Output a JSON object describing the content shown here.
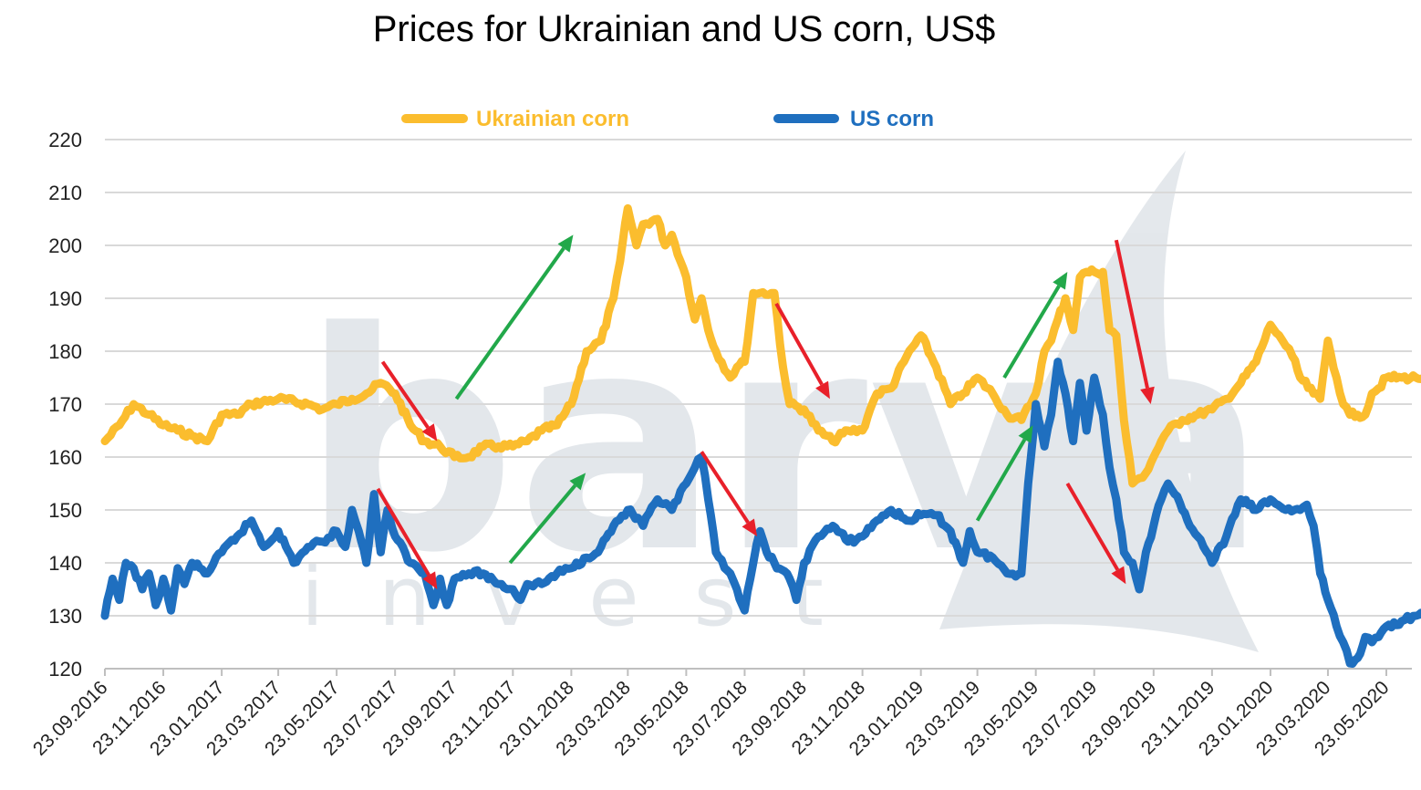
{
  "chart_data": {
    "type": "line",
    "title": "Prices for Ukrainian and US corn, US$",
    "xlabel": "",
    "ylabel": "",
    "ylim": [
      120,
      220
    ],
    "yticks": [
      120,
      130,
      140,
      150,
      160,
      170,
      180,
      190,
      200,
      210,
      220
    ],
    "x_tick_labels": [
      "23.09.2016",
      "23.11.2016",
      "23.01.2017",
      "23.03.2017",
      "23.05.2017",
      "23.07.2017",
      "23.09.2017",
      "23.11.2017",
      "23.01.2018",
      "23.03.2018",
      "23.05.2018",
      "23.07.2018",
      "23.09.2018",
      "23.11.2018",
      "23.01.2019",
      "23.03.2019",
      "23.05.2019",
      "23.07.2019",
      "23.09.2019",
      "23.11.2019",
      "23.01.2020",
      "23.03.2020",
      "23.05.2020"
    ],
    "x_range": [
      "23.09.2016",
      "01.07.2020"
    ],
    "grid": "horizontal",
    "legend_position": "top",
    "watermark": "barva invest",
    "series": [
      {
        "name": "Ukrainian corn",
        "color": "#fbbd2e",
        "points": [
          [
            "23.09.2016",
            163
          ],
          [
            "08.10.2016",
            166
          ],
          [
            "23.10.2016",
            170
          ],
          [
            "08.11.2016",
            168
          ],
          [
            "23.11.2016",
            166
          ],
          [
            "08.12.2016",
            165
          ],
          [
            "23.12.2016",
            164
          ],
          [
            "08.01.2017",
            163
          ],
          [
            "23.01.2017",
            168
          ],
          [
            "08.02.2017",
            168
          ],
          [
            "23.02.2017",
            170
          ],
          [
            "23.03.2017",
            171
          ],
          [
            "23.04.2017",
            170
          ],
          [
            "08.05.2017",
            169
          ],
          [
            "23.05.2017",
            170
          ],
          [
            "08.06.2017",
            171
          ],
          [
            "23.06.2017",
            172
          ],
          [
            "08.07.2017",
            174
          ],
          [
            "23.07.2017",
            172
          ],
          [
            "08.08.2017",
            166
          ],
          [
            "23.08.2017",
            163
          ],
          [
            "08.09.2017",
            162
          ],
          [
            "23.09.2017",
            160
          ],
          [
            "08.10.2017",
            160
          ],
          [
            "23.10.2017",
            162
          ],
          [
            "08.11.2017",
            162
          ],
          [
            "23.11.2017",
            162
          ],
          [
            "08.12.2017",
            163
          ],
          [
            "23.12.2017",
            165
          ],
          [
            "08.01.2018",
            166
          ],
          [
            "23.01.2018",
            170
          ],
          [
            "08.02.2018",
            180
          ],
          [
            "23.02.2018",
            182
          ],
          [
            "08.03.2018",
            190
          ],
          [
            "15.03.2018",
            197
          ],
          [
            "23.03.2018",
            207
          ],
          [
            "01.04.2018",
            200
          ],
          [
            "08.04.2018",
            204
          ],
          [
            "23.04.2018",
            205
          ],
          [
            "01.05.2018",
            200
          ],
          [
            "08.05.2018",
            202
          ],
          [
            "23.05.2018",
            194
          ],
          [
            "01.06.2018",
            186
          ],
          [
            "08.06.2018",
            190
          ],
          [
            "15.06.2018",
            184
          ],
          [
            "23.06.2018",
            180
          ],
          [
            "08.07.2018",
            175
          ],
          [
            "15.07.2018",
            177
          ],
          [
            "23.07.2018",
            178
          ],
          [
            "01.08.2018",
            191
          ],
          [
            "08.08.2018",
            191
          ],
          [
            "23.08.2018",
            191
          ],
          [
            "01.09.2018",
            177
          ],
          [
            "08.09.2018",
            170
          ],
          [
            "23.09.2018",
            169
          ],
          [
            "08.10.2018",
            165
          ],
          [
            "23.10.2018",
            163
          ],
          [
            "08.11.2018",
            165
          ],
          [
            "23.11.2018",
            165
          ],
          [
            "01.12.2018",
            169
          ],
          [
            "08.12.2018",
            172
          ],
          [
            "23.12.2018",
            173
          ],
          [
            "08.01.2019",
            179
          ],
          [
            "23.01.2019",
            183
          ],
          [
            "08.02.2019",
            177
          ],
          [
            "23.02.2019",
            170
          ],
          [
            "08.03.2019",
            172
          ],
          [
            "23.03.2019",
            175
          ],
          [
            "08.04.2019",
            172
          ],
          [
            "23.04.2019",
            168
          ],
          [
            "08.05.2019",
            167
          ],
          [
            "23.05.2019",
            172
          ],
          [
            "01.06.2019",
            180
          ],
          [
            "08.06.2019",
            182
          ],
          [
            "15.06.2019",
            186
          ],
          [
            "23.06.2019",
            190
          ],
          [
            "01.07.2019",
            184
          ],
          [
            "08.07.2019",
            194
          ],
          [
            "15.07.2019",
            195
          ],
          [
            "23.07.2019",
            195
          ],
          [
            "01.08.2019",
            195
          ],
          [
            "08.08.2019",
            184
          ],
          [
            "15.08.2019",
            183
          ],
          [
            "23.08.2019",
            167
          ],
          [
            "01.09.2019",
            155
          ],
          [
            "08.09.2019",
            156
          ],
          [
            "15.09.2019",
            157
          ],
          [
            "23.09.2019",
            160
          ],
          [
            "01.10.2019",
            163
          ],
          [
            "08.10.2019",
            165
          ],
          [
            "23.10.2019",
            167
          ],
          [
            "08.11.2019",
            168
          ],
          [
            "23.11.2019",
            169
          ],
          [
            "08.12.2019",
            171
          ],
          [
            "23.12.2019",
            174
          ],
          [
            "08.01.2020",
            178
          ],
          [
            "23.01.2020",
            185
          ],
          [
            "01.02.2020",
            183
          ],
          [
            "08.02.2020",
            181
          ],
          [
            "15.02.2020",
            179
          ],
          [
            "23.02.2020",
            175
          ],
          [
            "08.03.2020",
            172
          ],
          [
            "15.03.2020",
            171
          ],
          [
            "23.03.2020",
            182
          ],
          [
            "01.04.2020",
            175
          ],
          [
            "08.04.2020",
            170
          ],
          [
            "15.04.2020",
            168
          ],
          [
            "23.04.2020",
            168
          ],
          [
            "01.05.2020",
            168
          ],
          [
            "08.05.2020",
            172
          ],
          [
            "15.05.2020",
            173
          ],
          [
            "23.05.2020",
            175
          ],
          [
            "08.06.2020",
            175
          ],
          [
            "23.06.2020",
            175
          ],
          [
            "01.07.2020",
            175
          ]
        ]
      },
      {
        "name": "US corn",
        "color": "#1f6fbf",
        "points": [
          [
            "23.09.2016",
            130
          ],
          [
            "01.10.2016",
            137
          ],
          [
            "08.10.2016",
            133
          ],
          [
            "15.10.2016",
            140
          ],
          [
            "23.10.2016",
            139
          ],
          [
            "01.11.2016",
            135
          ],
          [
            "08.11.2016",
            138
          ],
          [
            "15.11.2016",
            132
          ],
          [
            "23.11.2016",
            137
          ],
          [
            "01.12.2016",
            131
          ],
          [
            "08.12.2016",
            139
          ],
          [
            "15.12.2016",
            136
          ],
          [
            "23.12.2016",
            140
          ],
          [
            "08.01.2017",
            138
          ],
          [
            "23.01.2017",
            142
          ],
          [
            "08.02.2017",
            145
          ],
          [
            "23.02.2017",
            148
          ],
          [
            "08.03.2017",
            143
          ],
          [
            "23.03.2017",
            146
          ],
          [
            "08.04.2017",
            140
          ],
          [
            "23.04.2017",
            143
          ],
          [
            "08.05.2017",
            144
          ],
          [
            "23.05.2017",
            146
          ],
          [
            "01.06.2017",
            143
          ],
          [
            "08.06.2017",
            150
          ],
          [
            "15.06.2017",
            146
          ],
          [
            "23.06.2017",
            140
          ],
          [
            "01.07.2017",
            153
          ],
          [
            "08.07.2017",
            142
          ],
          [
            "15.07.2017",
            150
          ],
          [
            "23.07.2017",
            145
          ],
          [
            "08.08.2017",
            140
          ],
          [
            "23.08.2017",
            138
          ],
          [
            "01.09.2017",
            132
          ],
          [
            "08.09.2017",
            137
          ],
          [
            "15.09.2017",
            132
          ],
          [
            "23.09.2017",
            137
          ],
          [
            "08.10.2017",
            138
          ],
          [
            "23.10.2017",
            138
          ],
          [
            "08.11.2017",
            136
          ],
          [
            "23.11.2017",
            135
          ],
          [
            "01.12.2017",
            133
          ],
          [
            "08.12.2017",
            136
          ],
          [
            "23.12.2017",
            136
          ],
          [
            "08.01.2018",
            138
          ],
          [
            "23.01.2018",
            139
          ],
          [
            "08.02.2018",
            141
          ],
          [
            "23.02.2018",
            143
          ],
          [
            "08.03.2018",
            147
          ],
          [
            "23.03.2018",
            150
          ],
          [
            "08.04.2018",
            147
          ],
          [
            "23.04.2018",
            152
          ],
          [
            "08.05.2018",
            150
          ],
          [
            "23.05.2018",
            155
          ],
          [
            "01.06.2018",
            158
          ],
          [
            "08.06.2018",
            160
          ],
          [
            "15.06.2018",
            152
          ],
          [
            "23.06.2018",
            142
          ],
          [
            "08.07.2018",
            138
          ],
          [
            "15.07.2018",
            135
          ],
          [
            "23.07.2018",
            131
          ],
          [
            "01.08.2018",
            140
          ],
          [
            "08.08.2018",
            146
          ],
          [
            "15.08.2018",
            142
          ],
          [
            "23.08.2018",
            140
          ],
          [
            "08.09.2018",
            137
          ],
          [
            "15.09.2018",
            133
          ],
          [
            "23.09.2018",
            140
          ],
          [
            "08.10.2018",
            145
          ],
          [
            "23.10.2018",
            147
          ],
          [
            "08.11.2018",
            144
          ],
          [
            "23.11.2018",
            145
          ],
          [
            "08.12.2018",
            148
          ],
          [
            "23.12.2018",
            150
          ],
          [
            "08.01.2019",
            148
          ],
          [
            "23.01.2019",
            149
          ],
          [
            "08.02.2019",
            149
          ],
          [
            "23.02.2019",
            146
          ],
          [
            "08.03.2019",
            140
          ],
          [
            "15.03.2019",
            146
          ],
          [
            "23.03.2019",
            142
          ],
          [
            "08.04.2019",
            141
          ],
          [
            "23.04.2019",
            138
          ],
          [
            "08.05.2019",
            138
          ],
          [
            "15.05.2019",
            155
          ],
          [
            "23.05.2019",
            170
          ],
          [
            "01.06.2019",
            162
          ],
          [
            "08.06.2019",
            168
          ],
          [
            "15.06.2019",
            178
          ],
          [
            "23.06.2019",
            172
          ],
          [
            "01.07.2019",
            163
          ],
          [
            "08.07.2019",
            174
          ],
          [
            "15.07.2019",
            165
          ],
          [
            "23.07.2019",
            175
          ],
          [
            "01.08.2019",
            168
          ],
          [
            "08.08.2019",
            158
          ],
          [
            "15.08.2019",
            152
          ],
          [
            "23.08.2019",
            142
          ],
          [
            "01.09.2019",
            140
          ],
          [
            "08.09.2019",
            135
          ],
          [
            "15.09.2019",
            142
          ],
          [
            "23.09.2019",
            147
          ],
          [
            "01.10.2019",
            152
          ],
          [
            "08.10.2019",
            155
          ],
          [
            "15.10.2019",
            153
          ],
          [
            "23.10.2019",
            150
          ],
          [
            "08.11.2019",
            145
          ],
          [
            "23.11.2019",
            140
          ],
          [
            "08.12.2019",
            145
          ],
          [
            "23.12.2019",
            152
          ],
          [
            "08.01.2020",
            150
          ],
          [
            "23.01.2020",
            152
          ],
          [
            "08.02.2020",
            150
          ],
          [
            "23.02.2020",
            150
          ],
          [
            "01.03.2020",
            151
          ],
          [
            "08.03.2020",
            147
          ],
          [
            "15.03.2020",
            138
          ],
          [
            "23.03.2020",
            133
          ],
          [
            "01.04.2020",
            128
          ],
          [
            "08.04.2020",
            125
          ],
          [
            "15.04.2020",
            121
          ],
          [
            "23.04.2020",
            122
          ],
          [
            "01.05.2020",
            126
          ],
          [
            "08.05.2020",
            125
          ],
          [
            "15.05.2020",
            126
          ],
          [
            "23.05.2020",
            128
          ],
          [
            "08.06.2020",
            129
          ],
          [
            "23.06.2020",
            130
          ],
          [
            "01.07.2020",
            130
          ]
        ]
      }
    ],
    "annotations": [
      {
        "type": "arrow",
        "color": "#e8202a",
        "from": [
          "10.07.2017",
          178
        ],
        "to": [
          "05.09.2017",
          163
        ]
      },
      {
        "type": "arrow",
        "color": "#22a84a",
        "from": [
          "25.09.2017",
          171
        ],
        "to": [
          "25.01.2018",
          202
        ]
      },
      {
        "type": "arrow",
        "color": "#e8202a",
        "from": [
          "25.08.2018",
          189
        ],
        "to": [
          "20.10.2018",
          171
        ]
      },
      {
        "type": "arrow",
        "color": "#22a84a",
        "from": [
          "20.04.2019",
          175
        ],
        "to": [
          "25.06.2019",
          195
        ]
      },
      {
        "type": "arrow",
        "color": "#e8202a",
        "from": [
          "15.08.2019",
          201
        ],
        "to": [
          "20.09.2019",
          170
        ]
      },
      {
        "type": "arrow",
        "color": "#e8202a",
        "from": [
          "05.07.2017",
          154
        ],
        "to": [
          "05.09.2017",
          135
        ]
      },
      {
        "type": "arrow",
        "color": "#22a84a",
        "from": [
          "20.11.2017",
          140
        ],
        "to": [
          "07.02.2018",
          157
        ]
      },
      {
        "type": "arrow",
        "color": "#e8202a",
        "from": [
          "08.06.2018",
          161
        ],
        "to": [
          "05.08.2018",
          145
        ]
      },
      {
        "type": "arrow",
        "color": "#22a84a",
        "from": [
          "23.03.2019",
          148
        ],
        "to": [
          "20.05.2019",
          166
        ]
      },
      {
        "type": "arrow",
        "color": "#e8202a",
        "from": [
          "25.06.2019",
          155
        ],
        "to": [
          "25.08.2019",
          136
        ]
      }
    ]
  }
}
